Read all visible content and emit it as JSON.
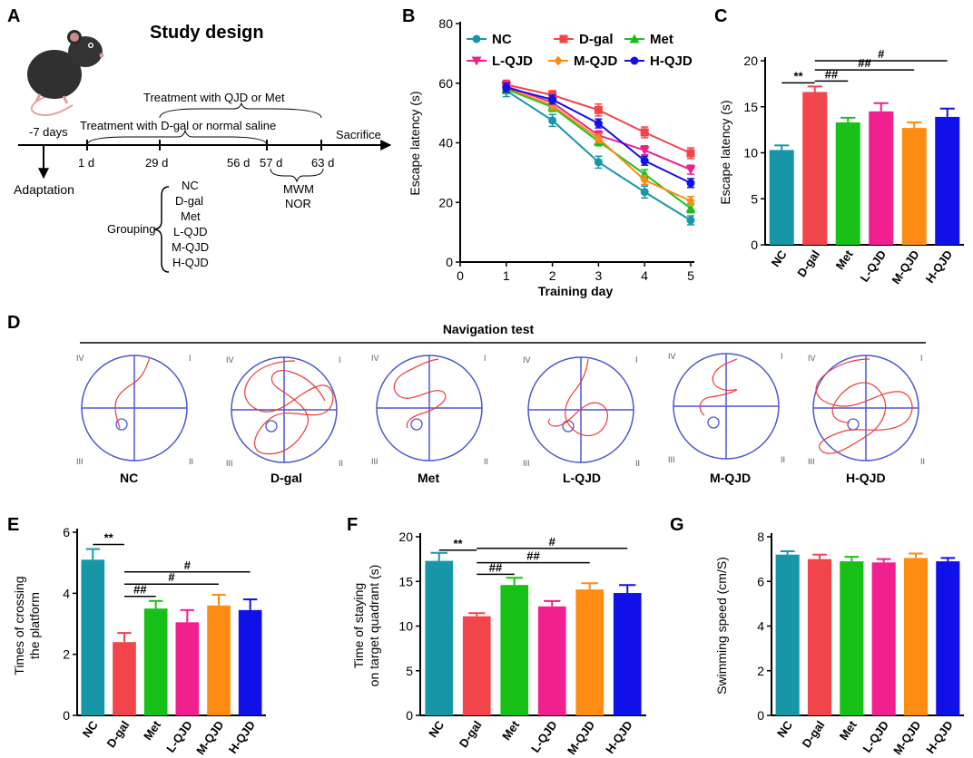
{
  "panels": {
    "A": "A",
    "B": "B",
    "C": "C",
    "D": "D",
    "E": "E",
    "F": "F",
    "G": "G"
  },
  "colors": {
    "NC": "#1796a8",
    "D-gal": "#f2444b",
    "Met": "#18c118",
    "L-QJD": "#f21f8f",
    "M-QJD": "#ff8c12",
    "H-QJD": "#1010e8",
    "track": "#ef3b35",
    "pool": "#4b57cf"
  },
  "study_design": {
    "title": "Study design",
    "treat_qjd": "Treatment with QJD or  Met",
    "treat_dgal": "Treatment with D-gal or normal saline",
    "sacrifice": "Sacrifice",
    "pre": "-7 days",
    "adaptation": "Adaptation",
    "days": [
      "1 d",
      "29 d",
      "56 d",
      "57 d",
      "63 d"
    ],
    "tests": [
      "MWM",
      "NOR"
    ],
    "grouping_label": "Grouping",
    "groups": [
      "NC",
      "D-gal",
      "Met",
      "L-QJD",
      "M-QJD",
      "H-QJD"
    ]
  },
  "navigation": {
    "title": "Navigation test",
    "labels": [
      "NC",
      "D-gal",
      "Met",
      "L-QJD",
      "M-QJD",
      "H-QJD"
    ],
    "quadrants": [
      "IV",
      "I",
      "III",
      "II"
    ]
  },
  "chart_data": [
    {
      "id": "B",
      "type": "line",
      "xlabel": "Training  day",
      "ylabel": "Escape latency (s)",
      "x": [
        1,
        2,
        3,
        4,
        5
      ],
      "xlim": [
        0,
        5
      ],
      "ylim": [
        0,
        80
      ],
      "xticks": [
        0,
        1,
        2,
        3,
        4,
        5
      ],
      "yticks": [
        0,
        20,
        40,
        60,
        80
      ],
      "legend_order": [
        "NC",
        "D-gal",
        "Met",
        "L-QJD",
        "M-QJD",
        "H-QJD"
      ],
      "series": [
        {
          "name": "NC",
          "values": [
            57.5,
            47.5,
            33.5,
            23.5,
            14.0
          ],
          "err": [
            2.0,
            2.0,
            2.0,
            2.0,
            1.5
          ],
          "marker": "circle"
        },
        {
          "name": "D-gal",
          "values": [
            59.5,
            56.0,
            51.0,
            43.5,
            36.5
          ],
          "err": [
            1.5,
            1.5,
            2.0,
            1.8,
            1.8
          ],
          "marker": "square"
        },
        {
          "name": "Met",
          "values": [
            58.0,
            52.0,
            40.5,
            29.5,
            18.0
          ],
          "err": [
            1.5,
            1.5,
            1.5,
            1.5,
            1.5
          ],
          "marker": "triangle"
        },
        {
          "name": "L-QJD",
          "values": [
            59.0,
            53.5,
            42.5,
            37.5,
            31.0
          ],
          "err": [
            1.5,
            1.5,
            1.5,
            1.5,
            1.5
          ],
          "marker": "tri-down"
        },
        {
          "name": "M-QJD",
          "values": [
            58.5,
            52.5,
            41.5,
            27.5,
            20.5
          ],
          "err": [
            1.5,
            1.5,
            1.5,
            1.5,
            1.5
          ],
          "marker": "diamond"
        },
        {
          "name": "H-QJD",
          "values": [
            58.5,
            54.5,
            46.5,
            34.0,
            26.5
          ],
          "err": [
            1.5,
            1.5,
            1.5,
            1.5,
            1.5
          ],
          "marker": "circle"
        }
      ]
    },
    {
      "id": "C",
      "type": "bar",
      "ylabel": "Escape latency (s)",
      "categories": [
        "NC",
        "D-gal",
        "Met",
        "L-QJD",
        "M-QJD",
        "H-QJD"
      ],
      "values": [
        10.3,
        16.6,
        13.3,
        14.5,
        12.7,
        13.9
      ],
      "err": [
        0.5,
        0.6,
        0.5,
        0.9,
        0.6,
        0.9
      ],
      "ylim": [
        0,
        20
      ],
      "yticks": [
        0,
        5,
        10,
        15,
        20
      ],
      "sig": [
        {
          "from": 0,
          "to": 1,
          "label": "**",
          "y": 17.6
        },
        {
          "from": 1,
          "to": 2,
          "label": "##",
          "y": 17.8
        },
        {
          "from": 1,
          "to": 4,
          "label": "##",
          "y": 19.0
        },
        {
          "from": 1,
          "to": 5,
          "label": "#",
          "y": 20.0
        }
      ]
    },
    {
      "id": "E",
      "type": "bar",
      "ylabel": "Times of crossing\nthe platform",
      "categories": [
        "NC",
        "D-gal",
        "Met",
        "L-QJD",
        "M-QJD",
        "H-QJD"
      ],
      "values": [
        5.1,
        2.4,
        3.5,
        3.05,
        3.6,
        3.45
      ],
      "err": [
        0.35,
        0.3,
        0.25,
        0.4,
        0.35,
        0.35
      ],
      "ylim": [
        0,
        6
      ],
      "yticks": [
        0,
        2,
        4,
        6
      ],
      "sig": [
        {
          "from": 0,
          "to": 1,
          "label": "**",
          "y": 5.6
        },
        {
          "from": 1,
          "to": 2,
          "label": "##",
          "y": 3.9
        },
        {
          "from": 1,
          "to": 4,
          "label": "#",
          "y": 4.3
        },
        {
          "from": 1,
          "to": 5,
          "label": "#",
          "y": 4.7
        }
      ]
    },
    {
      "id": "F",
      "type": "bar",
      "ylabel": "Time of staying\non target quadrant (s)",
      "categories": [
        "NC",
        "D-gal",
        "Met",
        "L-QJD",
        "M-QJD",
        "H-QJD"
      ],
      "values": [
        17.3,
        11.1,
        14.6,
        12.2,
        14.1,
        13.7
      ],
      "err": [
        0.9,
        0.35,
        0.8,
        0.6,
        0.7,
        0.9
      ],
      "ylim": [
        0,
        20
      ],
      "yticks": [
        0,
        5,
        10,
        15,
        20
      ],
      "sig": [
        {
          "from": 0,
          "to": 1,
          "label": "**",
          "y": 18.5
        },
        {
          "from": 1,
          "to": 2,
          "label": "##",
          "y": 15.8
        },
        {
          "from": 1,
          "to": 4,
          "label": "##",
          "y": 17.1
        },
        {
          "from": 1,
          "to": 5,
          "label": "#",
          "y": 18.7
        }
      ]
    },
    {
      "id": "G",
      "type": "bar",
      "ylabel": "Swimming speed (cm/S)",
      "categories": [
        "NC",
        "D-gal",
        "Met",
        "L-QJD",
        "M-QJD",
        "H-QJD"
      ],
      "values": [
        7.2,
        7.0,
        6.9,
        6.85,
        7.05,
        6.9
      ],
      "err": [
        0.15,
        0.2,
        0.2,
        0.15,
        0.2,
        0.15
      ],
      "ylim": [
        0,
        8
      ],
      "yticks": [
        0,
        2,
        4,
        6,
        8
      ],
      "sig": []
    }
  ]
}
